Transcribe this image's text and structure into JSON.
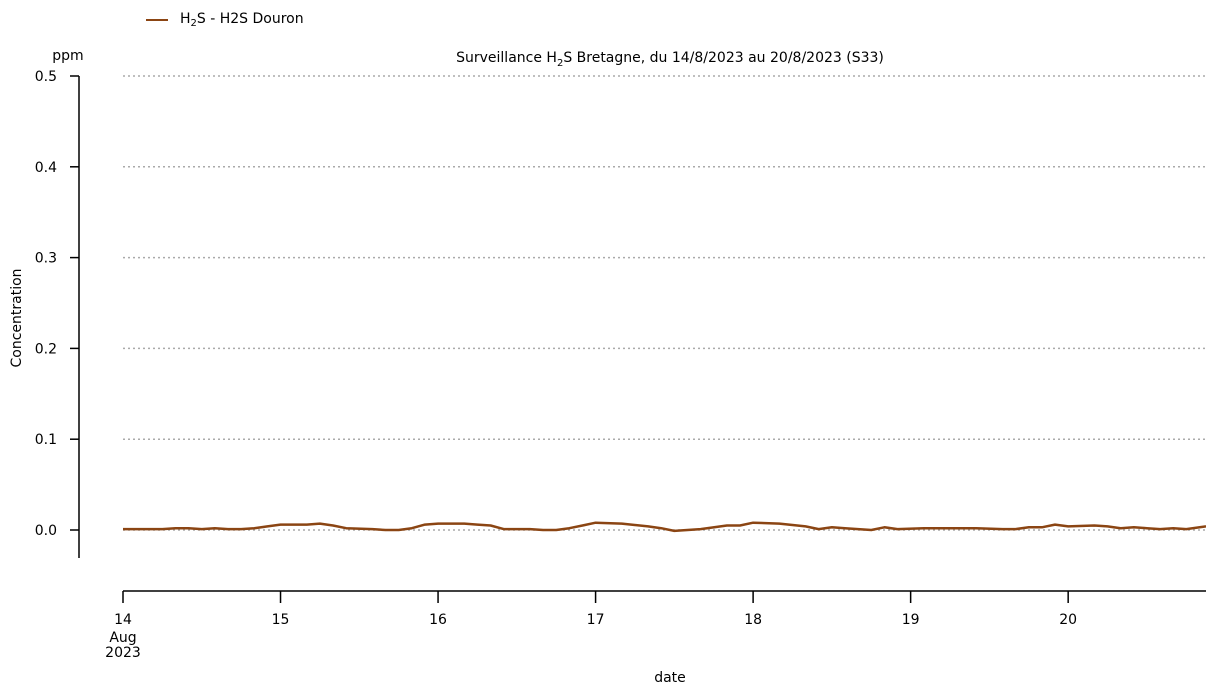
{
  "legend": {
    "prefix": "H",
    "sub": "2",
    "suffix": "S - H2S Douron"
  },
  "chart_data": {
    "type": "line",
    "title_prefix": "Surveillance H",
    "title_sub": "2",
    "title_suffix": "S Bretagne, du 14/8/2023 au 20/8/2023 (S33)",
    "xlabel": "date",
    "ylabel": "Concentration",
    "y_unit": "ppm",
    "ylim": [
      0,
      0.5
    ],
    "y_ticks": [
      "0.0",
      "0.1",
      "0.2",
      "0.3",
      "0.4",
      "0.5"
    ],
    "xlim": [
      "2023-08-14",
      "2023-08-20 21:00"
    ],
    "x_ticks": [
      {
        "date": "2023-08-14",
        "label": "14",
        "extra": [
          "Aug",
          "2023"
        ]
      },
      {
        "date": "2023-08-15",
        "label": "15"
      },
      {
        "date": "2023-08-16",
        "label": "16"
      },
      {
        "date": "2023-08-17",
        "label": "17"
      },
      {
        "date": "2023-08-18",
        "label": "18"
      },
      {
        "date": "2023-08-19",
        "label": "19"
      },
      {
        "date": "2023-08-20",
        "label": "20"
      }
    ],
    "grid": "horizontal dotted",
    "legend_position": "top-left",
    "series": [
      {
        "name": "H2S - H2S Douron",
        "color": "#8B4513",
        "points": [
          [
            "2023-08-14 00:00",
            0.001
          ],
          [
            "2023-08-14 06:00",
            0.001
          ],
          [
            "2023-08-14 08:00",
            0.002
          ],
          [
            "2023-08-14 10:00",
            0.002
          ],
          [
            "2023-08-14 12:00",
            0.001
          ],
          [
            "2023-08-14 14:00",
            0.002
          ],
          [
            "2023-08-14 16:00",
            0.001
          ],
          [
            "2023-08-14 18:00",
            0.001
          ],
          [
            "2023-08-14 20:00",
            0.002
          ],
          [
            "2023-08-14 22:00",
            0.004
          ],
          [
            "2023-08-15 00:00",
            0.006
          ],
          [
            "2023-08-15 04:00",
            0.006
          ],
          [
            "2023-08-15 06:00",
            0.007
          ],
          [
            "2023-08-15 08:00",
            0.005
          ],
          [
            "2023-08-15 10:00",
            0.002
          ],
          [
            "2023-08-15 14:00",
            0.001
          ],
          [
            "2023-08-15 16:00",
            0.0
          ],
          [
            "2023-08-15 18:00",
            0.0
          ],
          [
            "2023-08-15 20:00",
            0.002
          ],
          [
            "2023-08-15 22:00",
            0.006
          ],
          [
            "2023-08-16 00:00",
            0.007
          ],
          [
            "2023-08-16 04:00",
            0.007
          ],
          [
            "2023-08-16 06:00",
            0.006
          ],
          [
            "2023-08-16 08:00",
            0.005
          ],
          [
            "2023-08-16 10:00",
            0.001
          ],
          [
            "2023-08-16 14:00",
            0.001
          ],
          [
            "2023-08-16 16:00",
            0.0
          ],
          [
            "2023-08-16 18:00",
            0.0
          ],
          [
            "2023-08-16 20:00",
            0.002
          ],
          [
            "2023-08-16 22:00",
            0.005
          ],
          [
            "2023-08-17 00:00",
            0.008
          ],
          [
            "2023-08-17 04:00",
            0.007
          ],
          [
            "2023-08-17 08:00",
            0.004
          ],
          [
            "2023-08-17 10:00",
            0.002
          ],
          [
            "2023-08-17 12:00",
            -0.001
          ],
          [
            "2023-08-17 14:00",
            0.0
          ],
          [
            "2023-08-17 16:00",
            0.001
          ],
          [
            "2023-08-17 20:00",
            0.005
          ],
          [
            "2023-08-17 22:00",
            0.005
          ],
          [
            "2023-08-18 00:00",
            0.008
          ],
          [
            "2023-08-18 04:00",
            0.007
          ],
          [
            "2023-08-18 08:00",
            0.004
          ],
          [
            "2023-08-18 10:00",
            0.001
          ],
          [
            "2023-08-18 12:00",
            0.003
          ],
          [
            "2023-08-18 14:00",
            0.002
          ],
          [
            "2023-08-18 16:00",
            0.001
          ],
          [
            "2023-08-18 18:00",
            0.0
          ],
          [
            "2023-08-18 20:00",
            0.003
          ],
          [
            "2023-08-18 22:00",
            0.001
          ],
          [
            "2023-08-19 02:00",
            0.002
          ],
          [
            "2023-08-19 06:00",
            0.002
          ],
          [
            "2023-08-19 10:00",
            0.002
          ],
          [
            "2023-08-19 14:00",
            0.001
          ],
          [
            "2023-08-19 16:00",
            0.001
          ],
          [
            "2023-08-19 18:00",
            0.003
          ],
          [
            "2023-08-19 20:00",
            0.003
          ],
          [
            "2023-08-19 22:00",
            0.006
          ],
          [
            "2023-08-20 00:00",
            0.004
          ],
          [
            "2023-08-20 04:00",
            0.005
          ],
          [
            "2023-08-20 06:00",
            0.004
          ],
          [
            "2023-08-20 08:00",
            0.002
          ],
          [
            "2023-08-20 10:00",
            0.003
          ],
          [
            "2023-08-20 12:00",
            0.002
          ],
          [
            "2023-08-20 14:00",
            0.001
          ],
          [
            "2023-08-20 16:00",
            0.002
          ],
          [
            "2023-08-20 18:00",
            0.001
          ],
          [
            "2023-08-20 21:00",
            0.004
          ]
        ]
      }
    ]
  }
}
